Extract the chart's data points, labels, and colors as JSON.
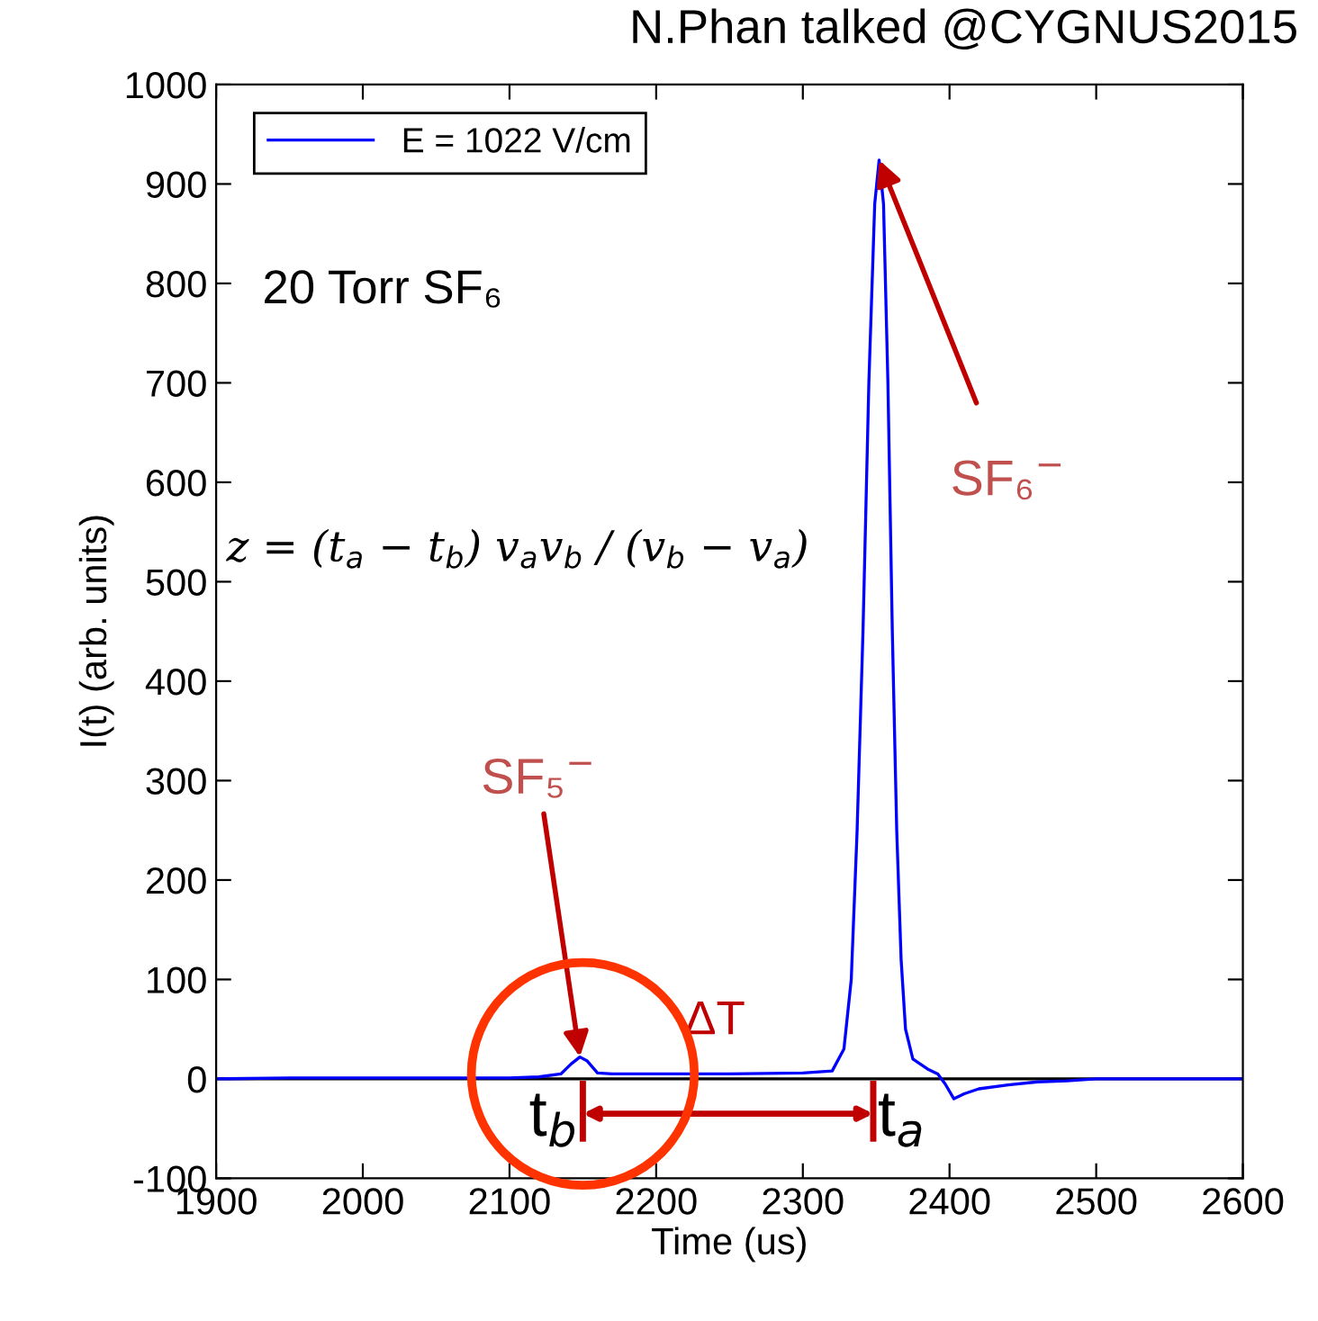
{
  "chart_data": {
    "type": "line",
    "xlabel": "Time (us)",
    "ylabel": "I(t) (arb. units)",
    "xlim": [
      1900,
      2600
    ],
    "xticks": [
      1900,
      2000,
      2100,
      2200,
      2300,
      2400,
      2500,
      2600
    ],
    "ylim": [
      -100,
      1000
    ],
    "yticks": [
      -100,
      0,
      100,
      200,
      300,
      400,
      500,
      600,
      700,
      800,
      900,
      1000
    ],
    "grid": false,
    "legend": "top left",
    "line_style": "solid",
    "marker": "none",
    "series": [
      {
        "name": "E = 1022 V/cm",
        "color": "#0000ff",
        "x": [
          1900,
          1950,
          2000,
          2050,
          2100,
          2120,
          2135,
          2142,
          2148,
          2153,
          2160,
          2170,
          2250,
          2300,
          2320,
          2328,
          2333,
          2337,
          2341,
          2345,
          2349,
          2352,
          2355,
          2358,
          2361,
          2364,
          2367,
          2370,
          2375,
          2385,
          2392,
          2397,
          2403,
          2410,
          2420,
          2440,
          2460,
          2480,
          2500,
          2550,
          2600
        ],
        "values": [
          0,
          1,
          1,
          1,
          1,
          2,
          5,
          15,
          22,
          18,
          6,
          5,
          5,
          6,
          8,
          30,
          100,
          250,
          450,
          700,
          880,
          924,
          880,
          700,
          450,
          250,
          120,
          50,
          20,
          10,
          5,
          -5,
          -20,
          -15,
          -10,
          -6,
          -3,
          -2,
          0,
          0,
          0
        ]
      }
    ],
    "ref_lines": [
      {
        "axis": "y",
        "value": 0,
        "color": "#000000",
        "line_style": "solid"
      }
    ],
    "annotations": [
      "N.Phan talked @CYGNUS2015",
      "20 Torr SF₆",
      "z = (t$_{a}$ − t$_{b}$) v$_{a}$v$_{b}$ / (v$_{b}$ − v$_{a}$)",
      {
        "text": "SF₆$^{−}$",
        "x": 2352,
        "y": 924
      },
      {
        "text": "SF₅$^{−}$",
        "x": 2148,
        "y": 22
      },
      {
        "text": "ΔT",
        "x": 2250,
        "y": 0
      },
      {
        "text": "t$_{b}$",
        "x": 2150,
        "y": 0
      },
      {
        "text": "t$_{a}$",
        "x": 2348,
        "y": 0
      }
    ]
  }
}
